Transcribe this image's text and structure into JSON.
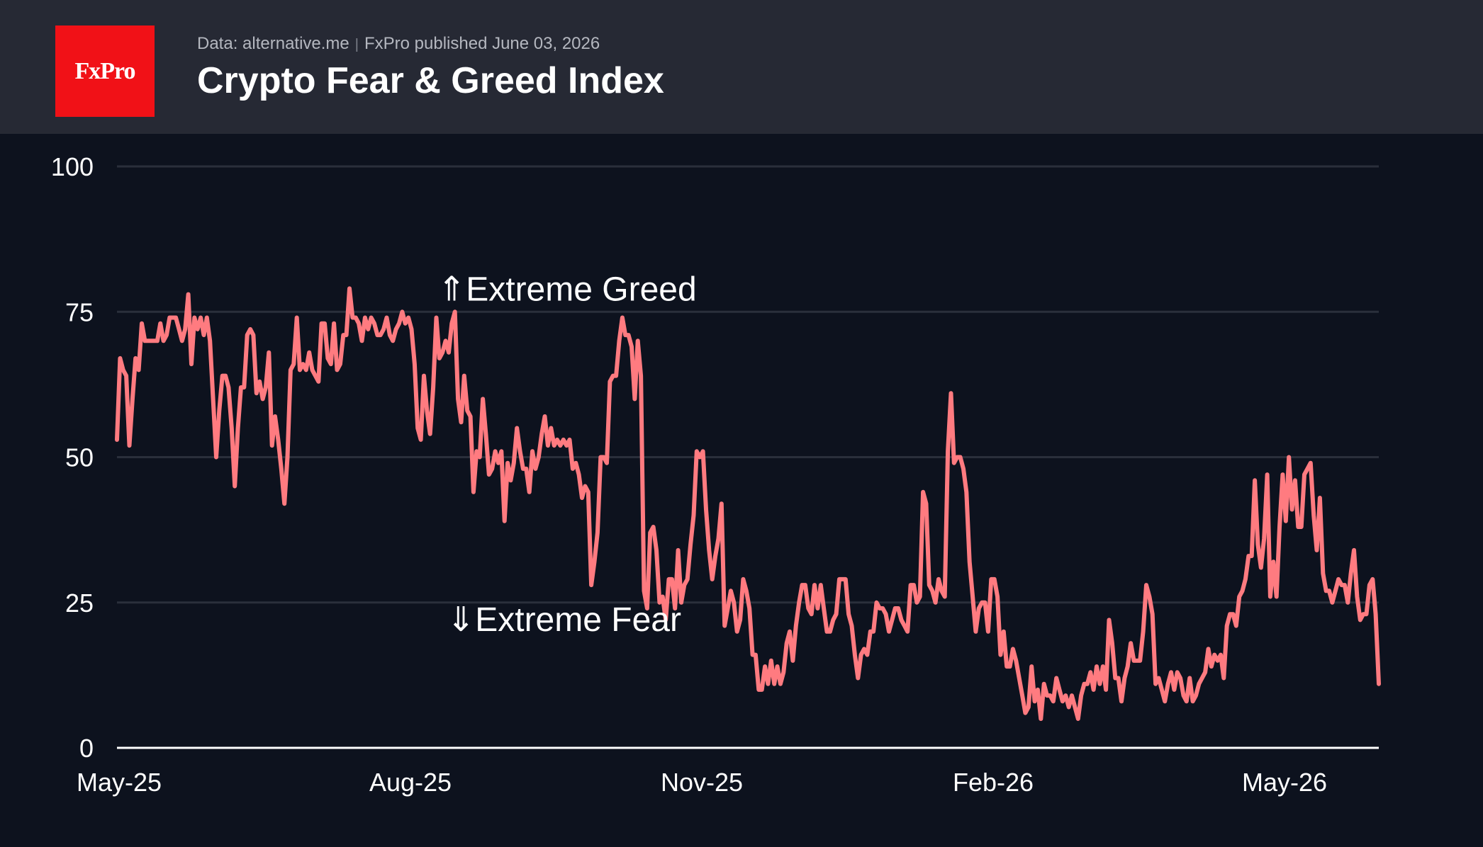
{
  "header": {
    "source": "Data: alternative.me",
    "publisher": "FxPro published June 03, 2026",
    "title": "Crypto Fear & Greed Index",
    "logo_text": "FxPro"
  },
  "colors": {
    "background": "#0d121e",
    "header": "#262934",
    "logo": "#f11117",
    "line": "#ff7b80",
    "grid": "#2a2f3b"
  },
  "chart_data": {
    "type": "line",
    "title": "Crypto Fear & Greed Index",
    "xlabel": "",
    "ylabel": "",
    "ylim": [
      0,
      100
    ],
    "yticks": [
      0,
      25,
      50,
      75,
      100
    ],
    "xticks": [
      "May-25",
      "Aug-25",
      "Nov-25",
      "Feb-26",
      "May-26"
    ],
    "x_range": [
      "2025-05-01",
      "2026-06-03"
    ],
    "grid": true,
    "annotations": [
      {
        "text": "⇑Extreme Greed",
        "value": 75
      },
      {
        "text": "⇓Extreme Fear",
        "value": 25
      }
    ],
    "series": [
      {
        "values": [
          53,
          67,
          65,
          64,
          52,
          60,
          67,
          65,
          73,
          70,
          70,
          70,
          70,
          70,
          73,
          70,
          71,
          74,
          74,
          74,
          72,
          70,
          72,
          78,
          66,
          74,
          72,
          74,
          71,
          74,
          70,
          60,
          50,
          58,
          64,
          64,
          62,
          55,
          45,
          55,
          62,
          62,
          71,
          72,
          71,
          61,
          63,
          60,
          62,
          68,
          52,
          57,
          53,
          48,
          42,
          50,
          65,
          66,
          74,
          65,
          66,
          65,
          68,
          65,
          64,
          63,
          73,
          73,
          67,
          66,
          73,
          65,
          66,
          71,
          71,
          79,
          74,
          74,
          73,
          70,
          74,
          72,
          74,
          73,
          71,
          71,
          72,
          74,
          71,
          70,
          72,
          73,
          75,
          73,
          74,
          72,
          66,
          55,
          53,
          64,
          58,
          54,
          62,
          74,
          67,
          68,
          70,
          68,
          73,
          75,
          60,
          56,
          64,
          58,
          57,
          44,
          51,
          50,
          60,
          54,
          47,
          48,
          51,
          49,
          51,
          39,
          49,
          46,
          49,
          55,
          51,
          48,
          48,
          44,
          51,
          48,
          50,
          54,
          57,
          52,
          55,
          52,
          53,
          52,
          53,
          52,
          53,
          48,
          49,
          47,
          43,
          45,
          44,
          28,
          32,
          37,
          50,
          50,
          49,
          63,
          64,
          64,
          70,
          74,
          71,
          71,
          69,
          60,
          70,
          64,
          27,
          24,
          37,
          38,
          34,
          25,
          26,
          22,
          29,
          29,
          24,
          34,
          25,
          28,
          29,
          35,
          40,
          51,
          50,
          51,
          41,
          34,
          29,
          33,
          36,
          42,
          21,
          24,
          27,
          25,
          20,
          22,
          29,
          27,
          24,
          16,
          16,
          10,
          10,
          14,
          11,
          15,
          11,
          14,
          11,
          13,
          18,
          20,
          15,
          21,
          25,
          28,
          28,
          24,
          23,
          28,
          24,
          28,
          24,
          20,
          20,
          22,
          23,
          29,
          29,
          29,
          23,
          21,
          16,
          12,
          16,
          17,
          16,
          20,
          20,
          25,
          24,
          24,
          23,
          20,
          22,
          24,
          24,
          22,
          21,
          20,
          28,
          28,
          25,
          26,
          44,
          42,
          28,
          27,
          25,
          29,
          27,
          26,
          51,
          61,
          49,
          50,
          50,
          48,
          44,
          32,
          26,
          20,
          24,
          25,
          25,
          20,
          29,
          29,
          26,
          16,
          20,
          14,
          14,
          17,
          15,
          12,
          9,
          6,
          7,
          14,
          8,
          10,
          5,
          11,
          9,
          9,
          8,
          12,
          10,
          8,
          9,
          7,
          9,
          7,
          5,
          9,
          11,
          11,
          13,
          10,
          14,
          11,
          14,
          10,
          22,
          18,
          12,
          12,
          8,
          12,
          14,
          18,
          15,
          15,
          15,
          20,
          28,
          26,
          23,
          11,
          12,
          10,
          8,
          11,
          13,
          10,
          13,
          12,
          9,
          8,
          12,
          8,
          9,
          11,
          12,
          13,
          17,
          14,
          16,
          15,
          16,
          12,
          21,
          23,
          23,
          21,
          26,
          27,
          29,
          33,
          33,
          46,
          35,
          31,
          36,
          47,
          26,
          32,
          26,
          38,
          47,
          39,
          50,
          41,
          46,
          38,
          38,
          47,
          48,
          49,
          40,
          34,
          43,
          30,
          27,
          27,
          25,
          27,
          29,
          28,
          28,
          25,
          30,
          34,
          26,
          22,
          23,
          23,
          28,
          29,
          23,
          11
        ]
      }
    ]
  }
}
